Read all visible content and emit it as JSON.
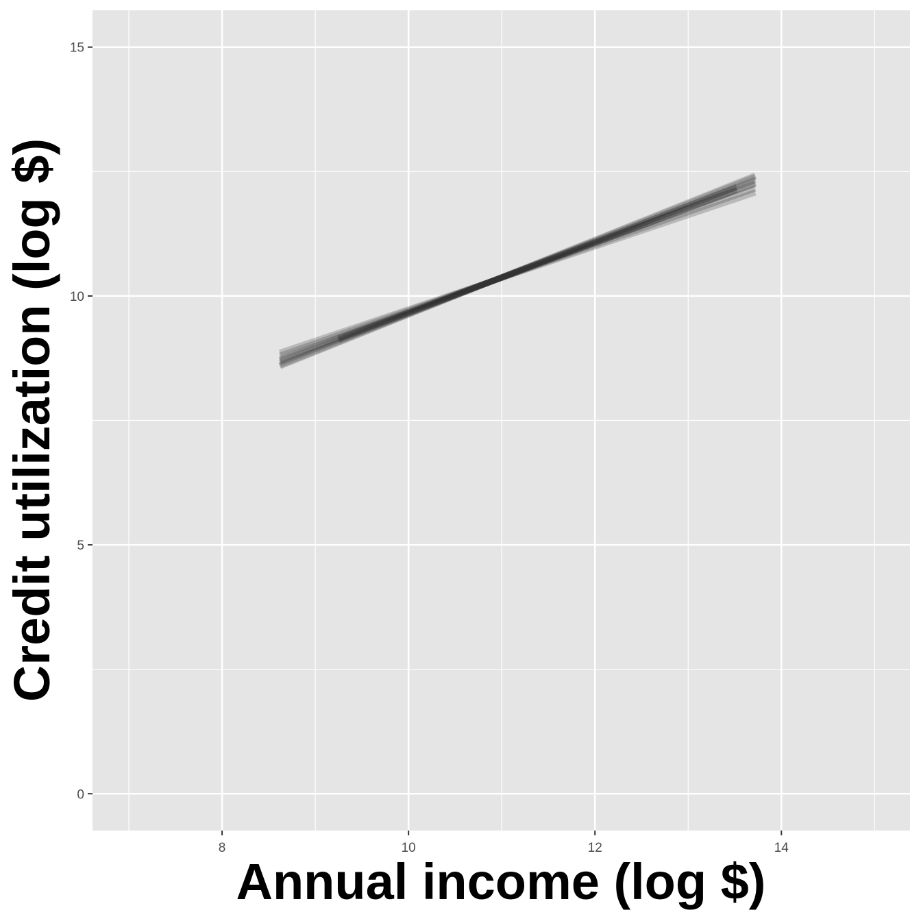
{
  "chart_data": {
    "type": "line",
    "x_label": "Annual income (log $)",
    "y_label": "Credit utilization (log $)",
    "xlim": [
      6.61,
      15.38
    ],
    "xticks": [
      8,
      10,
      12,
      14
    ],
    "x_minor_ticks": [
      7,
      9,
      11,
      13,
      15
    ],
    "ylim": [
      -0.74,
      15.74
    ],
    "yticks": [
      0,
      5,
      10,
      15
    ],
    "y_minor_ticks": [
      2.5,
      7.5,
      12.5
    ],
    "grid": true,
    "color": "#222222",
    "alpha": 0.22,
    "series": [
      {
        "x": [
          8.62,
          13.72
        ],
        "values": [
          8.8,
          12.16
        ]
      },
      {
        "x": [
          8.62,
          13.72
        ],
        "values": [
          8.73,
          12.25
        ]
      },
      {
        "x": [
          8.62,
          13.72
        ],
        "values": [
          8.66,
          12.33
        ]
      },
      {
        "x": [
          8.62,
          13.72
        ],
        "values": [
          8.59,
          12.42
        ]
      },
      {
        "x": [
          8.62,
          13.72
        ],
        "values": [
          8.86,
          12.08
        ]
      },
      {
        "x": [
          8.62,
          13.72
        ],
        "values": [
          8.7,
          12.27
        ]
      },
      {
        "x": [
          8.62,
          13.72
        ],
        "values": [
          8.61,
          12.39
        ]
      },
      {
        "x": [
          9.25,
          13.52
        ],
        "values": [
          9.15,
          12.13
        ]
      },
      {
        "x": [
          9.25,
          13.52
        ],
        "values": [
          9.11,
          12.19
        ]
      }
    ]
  }
}
